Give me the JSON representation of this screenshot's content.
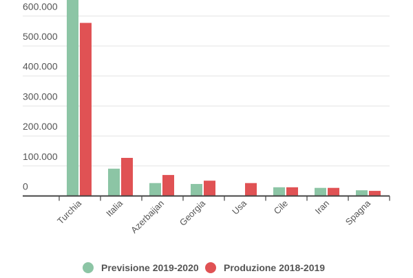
{
  "chart_data": {
    "type": "bar",
    "title": "",
    "xlabel": "",
    "ylabel": "",
    "categories": [
      "Turchia",
      "Italia",
      "Azerbaijan",
      "Georgia",
      "Usa",
      "Cile",
      "Iran",
      "Spagna"
    ],
    "series": [
      {
        "name": "Previsione 2019-2020",
        "color": "#8cc5a5",
        "values": [
          700000,
          91000,
          43000,
          40000,
          0,
          29000,
          27000,
          19000
        ]
      },
      {
        "name": "Produzione 2018-2019",
        "color": "#e05254",
        "values": [
          577000,
          127000,
          70000,
          51000,
          43000,
          29000,
          27000,
          17000
        ]
      }
    ],
    "yticks": [
      0,
      100000,
      200000,
      300000,
      400000,
      500000,
      600000
    ],
    "ytick_labels": [
      "0",
      "100.000",
      "200.000",
      "300.000",
      "400.000",
      "500.000",
      "600.000"
    ],
    "ylim": [
      0,
      650000
    ],
    "grid": true,
    "legend_position": "bottom"
  }
}
